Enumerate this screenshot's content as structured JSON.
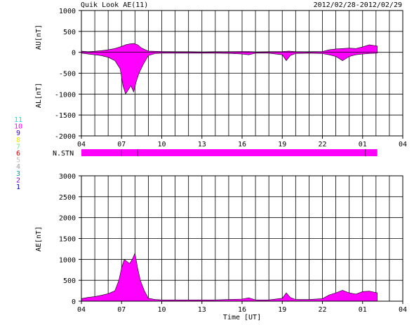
{
  "header": {
    "title": "Quik Look AE(11)",
    "date_range": "2012/02/28-2012/02/29"
  },
  "colors": {
    "fill": "#ff00ff",
    "axes": "#000000",
    "background": "#ffffff"
  },
  "station_legend": [
    {
      "num": "11",
      "color": "#00e5e5"
    },
    {
      "num": "10",
      "color": "#ff00ff"
    },
    {
      "num": "9",
      "color": "#3a00c8"
    },
    {
      "num": "8",
      "color": "#e6e600"
    },
    {
      "num": "7",
      "color": "#80e080"
    },
    {
      "num": "6",
      "color": "#e00000"
    },
    {
      "num": "5",
      "color": "#c0c0c0"
    },
    {
      "num": "4",
      "color": "#a0a0a0"
    },
    {
      "num": "3",
      "color": "#00a0a0"
    },
    {
      "num": "2",
      "color": "#9000c0"
    },
    {
      "num": "1",
      "color": "#0000c0"
    }
  ],
  "nstn_label": "N.STN",
  "chart_data": [
    {
      "type": "area",
      "title": "Quik Look AE(11)",
      "ylabel_top": "AU[nT]",
      "ylabel_bottom": "AL[nT]",
      "xlabel": "",
      "xlim": [
        4,
        28
      ],
      "ylim": [
        -2000,
        1000
      ],
      "yticks": [
        1000,
        500,
        0,
        -500,
        -1000,
        -1500,
        -2000
      ],
      "xtick_labels": [
        "04",
        "07",
        "10",
        "13",
        "16",
        "19",
        "22",
        "01",
        "04"
      ],
      "xtick_hours": [
        4,
        7,
        10,
        13,
        16,
        19,
        22,
        25,
        28
      ],
      "grid": true,
      "series": [
        {
          "key": "AU",
          "x": [
            4.0,
            4.5,
            5.0,
            5.5,
            6.0,
            6.5,
            7.0,
            7.3,
            7.6,
            7.9,
            8.2,
            8.5,
            9.0,
            10.0,
            11.0,
            12.0,
            13.0,
            14.0,
            15.0,
            16.0,
            16.5,
            17.0,
            18.0,
            19.0,
            19.5,
            20.0,
            21.0,
            22.0,
            22.5,
            23.0,
            24.0,
            24.5,
            25.0,
            25.5,
            26.1
          ],
          "values": [
            30,
            15,
            25,
            40,
            60,
            90,
            140,
            180,
            200,
            210,
            180,
            100,
            30,
            20,
            15,
            15,
            10,
            15,
            15,
            20,
            20,
            10,
            15,
            20,
            30,
            15,
            15,
            20,
            60,
            80,
            100,
            90,
            130,
            180,
            150
          ]
        },
        {
          "key": "AL",
          "x": [
            4.0,
            4.5,
            5.0,
            5.5,
            6.0,
            6.5,
            6.9,
            7.1,
            7.3,
            7.5,
            7.7,
            7.9,
            8.1,
            8.3,
            8.6,
            9.0,
            9.5,
            10.0,
            11.0,
            12.0,
            13.0,
            14.0,
            15.0,
            16.0,
            16.5,
            17.0,
            18.0,
            19.0,
            19.3,
            19.6,
            20.0,
            21.0,
            22.0,
            22.5,
            23.0,
            23.5,
            24.0,
            24.5,
            25.0,
            25.5,
            26.1
          ],
          "values": [
            -20,
            -40,
            -60,
            -80,
            -120,
            -200,
            -400,
            -800,
            -1000,
            -900,
            -800,
            -950,
            -700,
            -500,
            -300,
            -80,
            -30,
            -20,
            -20,
            -20,
            -20,
            -20,
            -25,
            -40,
            -60,
            -20,
            -20,
            -60,
            -200,
            -80,
            -30,
            -20,
            -30,
            -60,
            -100,
            -200,
            -100,
            -60,
            -40,
            -30,
            -20
          ]
        }
      ]
    },
    {
      "type": "area",
      "title": "",
      "ylabel": "AE[nT]",
      "xlabel": "Time [UT]",
      "xlim": [
        4,
        28
      ],
      "ylim": [
        0,
        3000
      ],
      "yticks": [
        3000,
        2500,
        2000,
        1500,
        1000,
        500,
        0
      ],
      "xtick_labels": [
        "04",
        "07",
        "10",
        "13",
        "16",
        "19",
        "22",
        "01",
        "04"
      ],
      "xtick_hours": [
        4,
        7,
        10,
        13,
        16,
        19,
        22,
        25,
        28
      ],
      "grid": true,
      "series": [
        {
          "key": "AE",
          "x": [
            4.0,
            4.5,
            5.0,
            5.5,
            6.0,
            6.5,
            6.8,
            7.0,
            7.2,
            7.4,
            7.6,
            7.8,
            8.0,
            8.2,
            8.4,
            8.7,
            9.0,
            9.5,
            10.0,
            11.0,
            12.0,
            13.0,
            14.0,
            15.0,
            16.0,
            16.5,
            17.0,
            18.0,
            19.0,
            19.3,
            19.6,
            20.0,
            21.0,
            22.0,
            22.5,
            23.0,
            23.5,
            24.0,
            24.5,
            25.0,
            25.5,
            26.1
          ],
          "values": [
            60,
            90,
            110,
            140,
            180,
            250,
            500,
            800,
            1000,
            950,
            900,
            1000,
            1150,
            800,
            500,
            250,
            70,
            40,
            30,
            30,
            30,
            30,
            30,
            40,
            50,
            80,
            30,
            30,
            70,
            200,
            90,
            40,
            40,
            60,
            150,
            200,
            260,
            200,
            170,
            230,
            240,
            200
          ]
        }
      ]
    }
  ]
}
